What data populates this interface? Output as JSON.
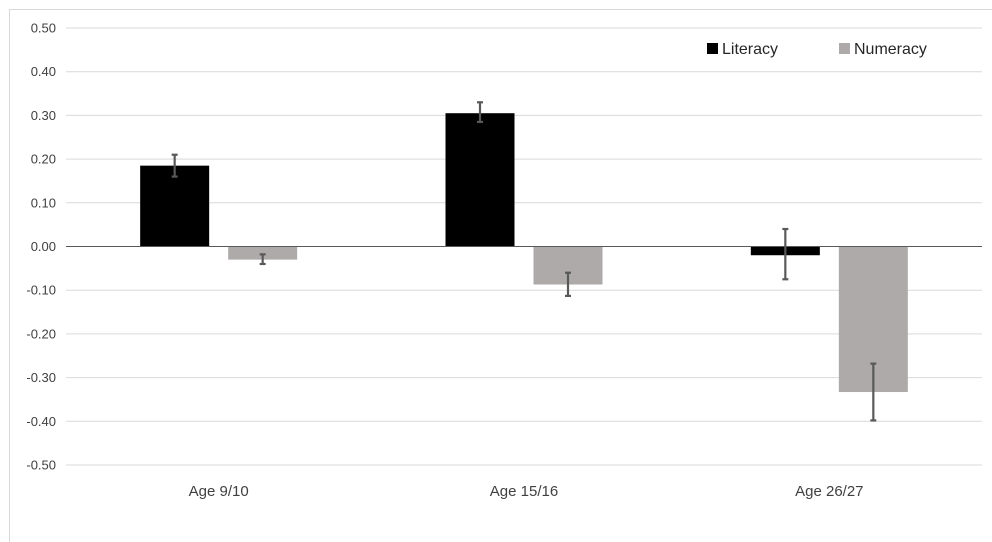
{
  "chart_data": {
    "type": "bar",
    "title": "",
    "xlabel": "",
    "ylabel": "",
    "categories": [
      "Age 9/10",
      "Age 15/16",
      "Age 26/27"
    ],
    "ylim": [
      -0.5,
      0.5
    ],
    "yticks": [
      "0.50",
      "0.40",
      "0.30",
      "0.20",
      "0.10",
      "0.00",
      "-0.10",
      "-0.20",
      "-0.30",
      "-0.40",
      "-0.50"
    ],
    "grid": true,
    "legend_position": "top-right",
    "series": [
      {
        "name": "Literacy",
        "color": "#000000",
        "values": [
          0.185,
          0.305,
          -0.02
        ],
        "error_low": [
          0.16,
          0.285,
          -0.075
        ],
        "error_high": [
          0.21,
          0.33,
          0.04
        ]
      },
      {
        "name": "Numeracy",
        "color": "#aeaaaa",
        "values": [
          -0.03,
          -0.087,
          -0.333
        ],
        "error_low": [
          -0.04,
          -0.113,
          -0.398
        ],
        "error_high": [
          -0.018,
          -0.06,
          -0.268
        ]
      }
    ]
  }
}
